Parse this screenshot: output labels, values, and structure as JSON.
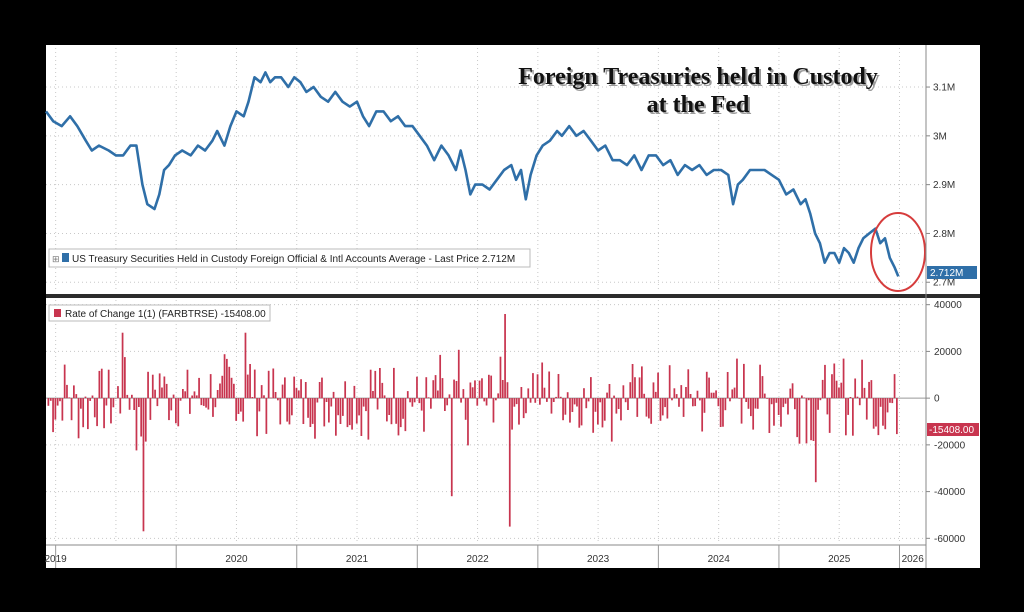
{
  "chart_data": [
    {
      "type": "line",
      "title": "Foreign Treasuries held in Custody",
      "title_line2": "at the Fed",
      "legend": "US Treasury Securities Held in Custody Foreign Official & Intl Accounts Average - Last Price 2.712M",
      "last_value_label": "2.712M",
      "y_ticks": [
        "3.1M",
        "3M",
        "2.9M",
        "2.8M",
        "2.7M"
      ],
      "y_tick_values": [
        3.1,
        3.0,
        2.9,
        2.8,
        2.7
      ],
      "ylim": [
        2.68,
        3.18
      ],
      "unit": "M",
      "series": [
        {
          "name": "US Treasury Securities Held in Custody Foreign Official & Intl Accounts Average",
          "color": "#2f6fa8",
          "points": [
            [
              2018.92,
              3.05
            ],
            [
              2018.98,
              3.03
            ],
            [
              2019.05,
              3.02
            ],
            [
              2019.12,
              3.04
            ],
            [
              2019.18,
              3.02
            ],
            [
              2019.25,
              2.99
            ],
            [
              2019.3,
              2.97
            ],
            [
              2019.36,
              2.98
            ],
            [
              2019.44,
              2.97
            ],
            [
              2019.5,
              2.96
            ],
            [
              2019.56,
              2.96
            ],
            [
              2019.62,
              2.98
            ],
            [
              2019.67,
              2.98
            ],
            [
              2019.72,
              2.9
            ],
            [
              2019.76,
              2.86
            ],
            [
              2019.82,
              2.85
            ],
            [
              2019.86,
              2.88
            ],
            [
              2019.9,
              2.93
            ],
            [
              2019.94,
              2.94
            ],
            [
              2019.99,
              2.96
            ],
            [
              2020.05,
              2.97
            ],
            [
              2020.12,
              2.96
            ],
            [
              2020.18,
              2.98
            ],
            [
              2020.24,
              2.97
            ],
            [
              2020.3,
              2.99
            ],
            [
              2020.34,
              3.01
            ],
            [
              2020.4,
              2.98
            ],
            [
              2020.45,
              3.02
            ],
            [
              2020.5,
              3.05
            ],
            [
              2020.56,
              3.04
            ],
            [
              2020.6,
              3.07
            ],
            [
              2020.65,
              3.12
            ],
            [
              2020.7,
              3.11
            ],
            [
              2020.74,
              3.13
            ],
            [
              2020.78,
              3.11
            ],
            [
              2020.82,
              3.12
            ],
            [
              2020.87,
              3.12
            ],
            [
              2020.93,
              3.1
            ],
            [
              2020.98,
              3.12
            ],
            [
              2021.03,
              3.11
            ],
            [
              2021.08,
              3.09
            ],
            [
              2021.14,
              3.1
            ],
            [
              2021.2,
              3.08
            ],
            [
              2021.26,
              3.07
            ],
            [
              2021.32,
              3.09
            ],
            [
              2021.38,
              3.07
            ],
            [
              2021.44,
              3.06
            ],
            [
              2021.5,
              3.07
            ],
            [
              2021.55,
              3.04
            ],
            [
              2021.6,
              3.02
            ],
            [
              2021.66,
              3.05
            ],
            [
              2021.72,
              3.05
            ],
            [
              2021.78,
              3.03
            ],
            [
              2021.84,
              3.04
            ],
            [
              2021.9,
              3.02
            ],
            [
              2021.96,
              3.02
            ],
            [
              2022.02,
              3.0
            ],
            [
              2022.08,
              2.98
            ],
            [
              2022.14,
              2.95
            ],
            [
              2022.2,
              2.98
            ],
            [
              2022.26,
              2.96
            ],
            [
              2022.32,
              2.93
            ],
            [
              2022.36,
              2.97
            ],
            [
              2022.4,
              2.93
            ],
            [
              2022.44,
              2.88
            ],
            [
              2022.48,
              2.9
            ],
            [
              2022.54,
              2.9
            ],
            [
              2022.6,
              2.89
            ],
            [
              2022.66,
              2.91
            ],
            [
              2022.72,
              2.93
            ],
            [
              2022.78,
              2.94
            ],
            [
              2022.82,
              2.91
            ],
            [
              2022.86,
              2.93
            ],
            [
              2022.9,
              2.87
            ],
            [
              2022.94,
              2.92
            ],
            [
              2022.99,
              2.96
            ],
            [
              2023.04,
              2.98
            ],
            [
              2023.1,
              2.99
            ],
            [
              2023.16,
              3.01
            ],
            [
              2023.2,
              3.0
            ],
            [
              2023.26,
              3.02
            ],
            [
              2023.32,
              3.0
            ],
            [
              2023.38,
              3.01
            ],
            [
              2023.44,
              2.99
            ],
            [
              2023.5,
              2.97
            ],
            [
              2023.56,
              2.98
            ],
            [
              2023.62,
              2.95
            ],
            [
              2023.68,
              2.95
            ],
            [
              2023.74,
              2.94
            ],
            [
              2023.8,
              2.96
            ],
            [
              2023.86,
              2.93
            ],
            [
              2023.92,
              2.96
            ],
            [
              2023.98,
              2.96
            ],
            [
              2024.04,
              2.94
            ],
            [
              2024.1,
              2.95
            ],
            [
              2024.16,
              2.92
            ],
            [
              2024.22,
              2.94
            ],
            [
              2024.28,
              2.93
            ],
            [
              2024.34,
              2.94
            ],
            [
              2024.4,
              2.92
            ],
            [
              2024.46,
              2.93
            ],
            [
              2024.52,
              2.93
            ],
            [
              2024.58,
              2.92
            ],
            [
              2024.62,
              2.86
            ],
            [
              2024.66,
              2.9
            ],
            [
              2024.7,
              2.91
            ],
            [
              2024.76,
              2.93
            ],
            [
              2024.82,
              2.93
            ],
            [
              2024.88,
              2.93
            ],
            [
              2024.94,
              2.92
            ],
            [
              2025.0,
              2.91
            ],
            [
              2025.06,
              2.88
            ],
            [
              2025.12,
              2.89
            ],
            [
              2025.18,
              2.86
            ],
            [
              2025.22,
              2.87
            ],
            [
              2025.26,
              2.84
            ],
            [
              2025.3,
              2.8
            ],
            [
              2025.34,
              2.78
            ],
            [
              2025.38,
              2.74
            ],
            [
              2025.42,
              2.76
            ],
            [
              2025.46,
              2.76
            ],
            [
              2025.5,
              2.74
            ],
            [
              2025.54,
              2.77
            ],
            [
              2025.58,
              2.76
            ],
            [
              2025.62,
              2.74
            ],
            [
              2025.66,
              2.77
            ],
            [
              2025.7,
              2.79
            ],
            [
              2025.75,
              2.8
            ],
            [
              2025.8,
              2.81
            ],
            [
              2025.84,
              2.78
            ],
            [
              2025.88,
              2.79
            ],
            [
              2025.92,
              2.75
            ],
            [
              2025.96,
              2.73
            ],
            [
              2025.99,
              2.712
            ]
          ]
        }
      ]
    },
    {
      "type": "bar",
      "legend": "Rate of Change 1(1) (FARBTRSE) -15408.00",
      "last_value_label": "-15408.00",
      "y_ticks": [
        "40000",
        "20000",
        "0",
        "-20000",
        "-40000",
        "-60000"
      ],
      "y_tick_values": [
        40000,
        20000,
        0,
        -20000,
        -40000,
        -60000
      ],
      "ylim": [
        -62000,
        42000
      ],
      "series": [
        {
          "name": "Rate of Change 1(1) (FARBTRSE)",
          "color": "#c8354f",
          "notable_values": [
            {
              "date": 2019.55,
              "value": 28000
            },
            {
              "date": 2019.73,
              "value": -57000
            },
            {
              "date": 2020.57,
              "value": 28000
            },
            {
              "date": 2022.28,
              "value": -42000
            },
            {
              "date": 2022.73,
              "value": 36000
            },
            {
              "date": 2022.76,
              "value": -55000
            },
            {
              "date": 2025.3,
              "value": -36000
            },
            {
              "date": 2025.99,
              "value": -15408
            }
          ]
        }
      ]
    }
  ],
  "x_ticks": [
    "2019",
    "2020",
    "2021",
    "2022",
    "2023",
    "2024",
    "2025",
    "2026"
  ],
  "x_tick_years": [
    2019,
    2020,
    2021,
    2022,
    2023,
    2024,
    2025,
    2026
  ]
}
